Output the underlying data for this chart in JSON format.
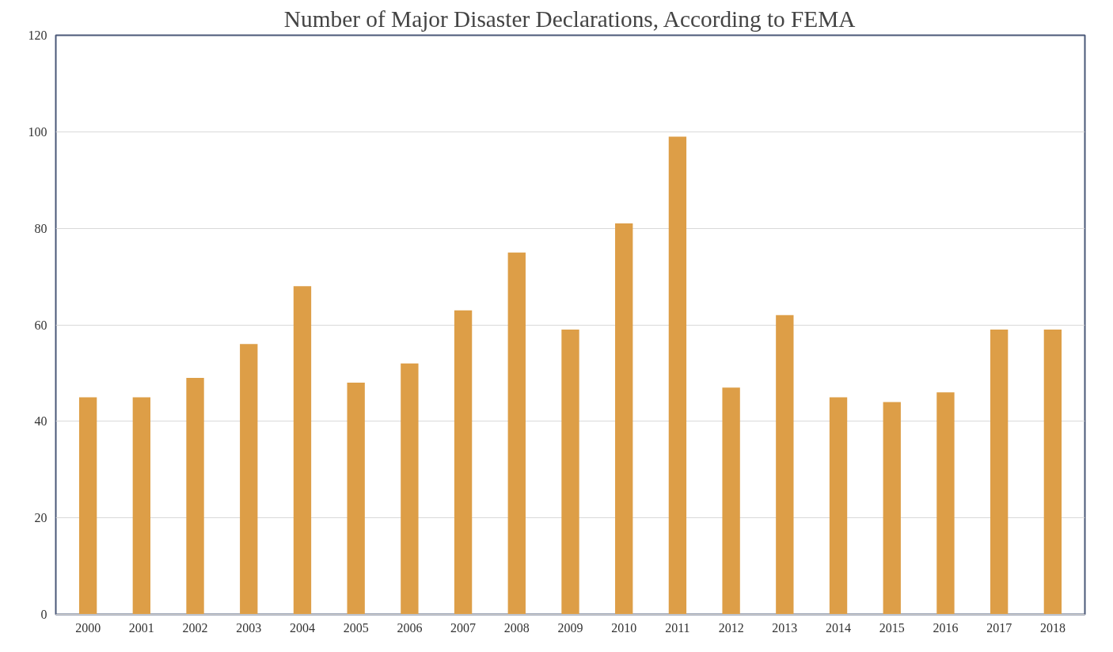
{
  "chart_data": {
    "type": "bar",
    "title": "Number of Major Disaster Declarations, According to FEMA",
    "categories": [
      "2000",
      "2001",
      "2002",
      "2003",
      "2004",
      "2005",
      "2006",
      "2007",
      "2008",
      "2009",
      "2010",
      "2011",
      "2012",
      "2013",
      "2014",
      "2015",
      "2016",
      "2017",
      "2018"
    ],
    "values": [
      45,
      45,
      49,
      56,
      68,
      48,
      52,
      63,
      75,
      59,
      81,
      99,
      47,
      62,
      45,
      44,
      46,
      59,
      59
    ],
    "color": "#dd9e47",
    "ylim": [
      0,
      120
    ],
    "yticks": [
      0,
      20,
      40,
      60,
      80,
      100,
      120
    ],
    "grid": "y"
  }
}
